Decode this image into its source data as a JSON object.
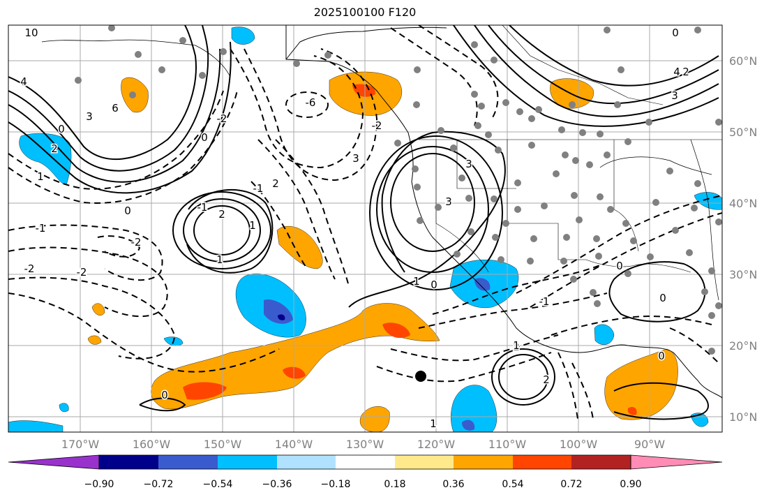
{
  "title": "2025100100 F120",
  "lat_labels": [
    "60°N",
    "50°N",
    "40°N",
    "30°N",
    "20°N",
    "10°N"
  ],
  "lon_labels": [
    "170°W",
    "160°W",
    "150°W",
    "140°W",
    "130°W",
    "120°W",
    "110°W",
    "100°W",
    "90°W"
  ],
  "colorbar": {
    "labels": [
      "−0.90",
      "−0.72",
      "−0.54",
      "−0.36",
      "−0.18",
      "0.18",
      "0.36",
      "0.54",
      "0.72",
      "0.90"
    ],
    "colors": [
      "#9932cc",
      "#00008b",
      "#3a5bcd",
      "#00bfff",
      "#b0e2ff",
      "#ffffff",
      "#ffe98a",
      "#ffa500",
      "#ff4500",
      "#b22222",
      "#ff8cb4"
    ]
  },
  "contour_labels": [
    "10",
    "4",
    "3",
    "0",
    "2",
    "1",
    "-1",
    "-2",
    "6",
    "2",
    "-2",
    "1",
    "0",
    "2",
    "-2",
    "-1",
    "1",
    "-2",
    "3",
    "3",
    "0",
    "-1",
    "3",
    "2",
    "0",
    "4",
    "-6",
    "-2",
    "0",
    "-1",
    "1",
    "2",
    "3",
    "0",
    "-1",
    "0",
    "1",
    "2",
    "1",
    "0",
    "0"
  ],
  "colors": {
    "positive_orange": "#ffa500",
    "positive_red": "#ff4500",
    "negative_blue": "#00bfff",
    "negative_dark": "#3a5bcd",
    "station_marker": "#808080"
  }
}
